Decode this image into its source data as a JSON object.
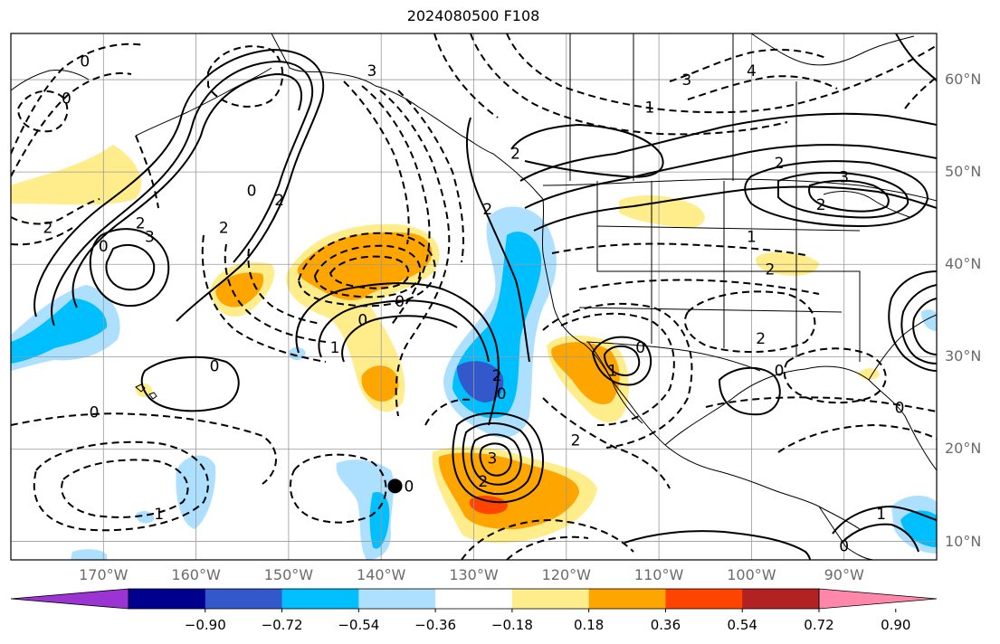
{
  "title": "2024080500 F108",
  "lat_labels": [
    "60°N",
    "50°N",
    "40°N",
    "30°N",
    "20°N",
    "10°N"
  ],
  "lon_labels": [
    "170°W",
    "160°W",
    "150°W",
    "140°W",
    "130°W",
    "120°W",
    "110°W",
    "100°W",
    "90°W"
  ],
  "colorbar": {
    "colors": [
      "#9a35d3",
      "#00008f",
      "#3358cc",
      "#00bfff",
      "#ade0ff",
      "#ffffff",
      "#ffec8a",
      "#ffa500",
      "#ff4400",
      "#b22222",
      "#ff88aa"
    ],
    "tick_labels": [
      "−0.90",
      "−0.72",
      "−0.54",
      "−0.36",
      "−0.18",
      "0.18",
      "0.36",
      "0.54",
      "0.72",
      "0.90"
    ]
  },
  "contour_labels": [
    {
      "text": "0",
      "lon": -172,
      "lat": 62
    },
    {
      "text": "0",
      "lon": -174,
      "lat": 58
    },
    {
      "text": "0",
      "lon": -170,
      "lat": 42
    },
    {
      "text": "2",
      "lon": -176,
      "lat": 44
    },
    {
      "text": "3",
      "lon": -165,
      "lat": 43
    },
    {
      "text": "2",
      "lon": -166,
      "lat": 44.5
    },
    {
      "text": "2",
      "lon": -157,
      "lat": 44
    },
    {
      "text": "0",
      "lon": -154,
      "lat": 48
    },
    {
      "text": "2",
      "lon": -151,
      "lat": 47
    },
    {
      "text": "3",
      "lon": -141,
      "lat": 61
    },
    {
      "text": "1",
      "lon": -145,
      "lat": 31
    },
    {
      "text": "0",
      "lon": -142,
      "lat": 34
    },
    {
      "text": "0",
      "lon": -138,
      "lat": 36
    },
    {
      "text": "0",
      "lon": -158,
      "lat": 29
    },
    {
      "text": "0",
      "lon": -171,
      "lat": 24
    },
    {
      "text": "1",
      "lon": -164,
      "lat": 13
    },
    {
      "text": "0",
      "lon": -137,
      "lat": 16
    },
    {
      "text": "2",
      "lon": -127.5,
      "lat": 28
    },
    {
      "text": "0",
      "lon": -127,
      "lat": 26
    },
    {
      "text": "3",
      "lon": -128,
      "lat": 19
    },
    {
      "text": "2",
      "lon": -129,
      "lat": 16.5
    },
    {
      "text": "2",
      "lon": -125.5,
      "lat": 52
    },
    {
      "text": "2",
      "lon": -128.5,
      "lat": 46
    },
    {
      "text": "1",
      "lon": -111,
      "lat": 57
    },
    {
      "text": "3",
      "lon": -107,
      "lat": 60
    },
    {
      "text": "4",
      "lon": -100,
      "lat": 61
    },
    {
      "text": "1",
      "lon": -100,
      "lat": 43
    },
    {
      "text": "2",
      "lon": -98,
      "lat": 39.5
    },
    {
      "text": "2",
      "lon": -99,
      "lat": 32
    },
    {
      "text": "0",
      "lon": -97,
      "lat": 28.5
    },
    {
      "text": "0",
      "lon": -84,
      "lat": 24.5
    },
    {
      "text": "3",
      "lon": -90,
      "lat": 49.5
    },
    {
      "text": "2",
      "lon": -92.5,
      "lat": 46.5
    },
    {
      "text": "2",
      "lon": -97,
      "lat": 51
    },
    {
      "text": "1",
      "lon": -115,
      "lat": 28.5
    },
    {
      "text": "0",
      "lon": -112,
      "lat": 31
    },
    {
      "text": "2",
      "lon": -119,
      "lat": 21
    },
    {
      "text": "0",
      "lon": -90,
      "lat": 9.5
    },
    {
      "text": "1",
      "lon": -86,
      "lat": 13
    }
  ],
  "storm_marker": {
    "lon": -138.5,
    "lat": 16
  }
}
